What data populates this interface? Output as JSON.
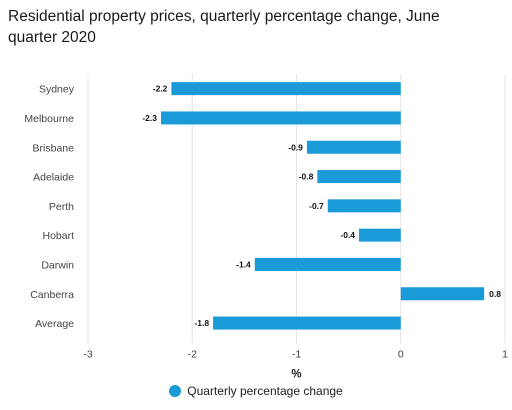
{
  "chart_data": {
    "type": "bar",
    "orientation": "horizontal",
    "title": "Residential property prices, quarterly percentage change, June quarter 2020",
    "xlabel": "%",
    "ylabel": "",
    "categories": [
      "Sydney",
      "Melbourne",
      "Brisbane",
      "Adelaide",
      "Perth",
      "Hobart",
      "Darwin",
      "Canberra",
      "Average"
    ],
    "series": [
      {
        "name": "Quarterly percentage change",
        "values": [
          -2.2,
          -2.3,
          -0.9,
          -0.8,
          -0.7,
          -0.4,
          -1.4,
          0.8,
          -1.8
        ],
        "labels": [
          "-2.2",
          "-2.3",
          "-0.9",
          "-0.8",
          "-0.7",
          "-0.4",
          "-1.4",
          "0.8",
          "-1.8"
        ]
      }
    ],
    "xlim": [
      -3,
      1
    ],
    "xticks": [
      -3,
      -2,
      -1,
      0,
      1
    ],
    "xtick_labels": [
      "-3",
      "-2",
      "-1",
      "0",
      "1"
    ],
    "grid": "vertical",
    "legend_position": "bottom-center",
    "colors": {
      "bar": "#1a9bd7",
      "grid": "#e4e4e4",
      "axis": "#cccccc"
    }
  }
}
